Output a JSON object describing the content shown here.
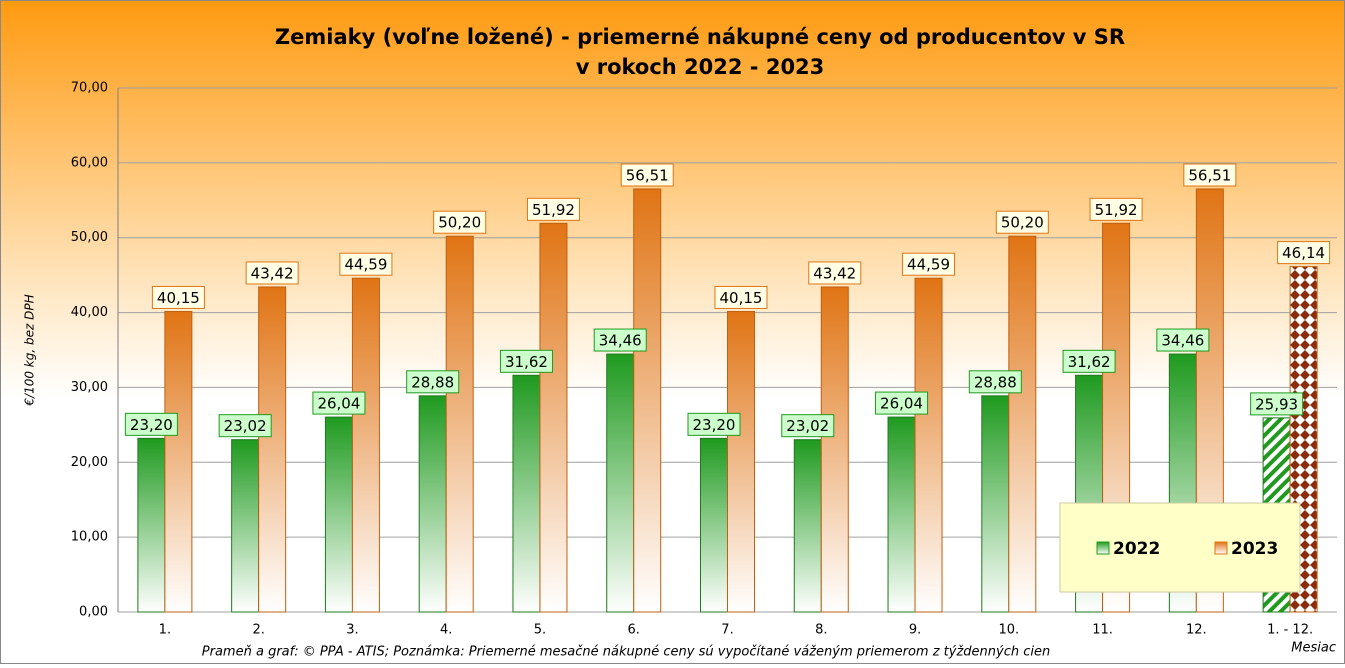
{
  "chart_data": {
    "type": "bar",
    "title": [
      "Zemiaky (voľne ložené) - priemerné nákupné ceny od producentov v SR",
      "v rokoch 2022 - 2023"
    ],
    "ylabel": "€/100 kg, bez DPH",
    "xlabel": "Mesiac",
    "footnote": "Prameň a graf: © PPA - ATIS; Poznámka: Priemerné mesačné nákupné ceny sú vypočítané váženým priemerom z týždenných cien",
    "categories": [
      "1.",
      "2.",
      "3.",
      "4.",
      "5.",
      "6.",
      "7.",
      "8.",
      "9.",
      "10.",
      "11.",
      "12.",
      "1. - 12."
    ],
    "series": [
      {
        "name": "2022",
        "color": "#1f9a1f",
        "label_fill": "#ccffcc",
        "values": [
          23.2,
          23.02,
          26.04,
          28.88,
          31.62,
          34.46,
          23.2,
          23.02,
          26.04,
          28.88,
          31.62,
          34.46,
          25.93
        ],
        "value_labels": [
          "23,20",
          "23,02",
          "26,04",
          "28,88",
          "31,62",
          "34,46",
          "23,20",
          "23,02",
          "26,04",
          "28,88",
          "31,62",
          "34,46",
          "25,93"
        ]
      },
      {
        "name": "2023",
        "color": "#e07414",
        "label_fill": "#ffffe6",
        "values": [
          40.15,
          43.42,
          44.59,
          50.2,
          51.92,
          56.51,
          40.15,
          43.42,
          44.59,
          50.2,
          51.92,
          56.51,
          46.14
        ],
        "value_labels": [
          "40,15",
          "43,42",
          "44,59",
          "50,20",
          "51,92",
          "56,51",
          "40,15",
          "43,42",
          "44,59",
          "50,20",
          "51,92",
          "56,51",
          "46,14"
        ]
      }
    ],
    "ylim": [
      0,
      70
    ],
    "yticks": [
      {
        "value": 0,
        "label": "0,00"
      },
      {
        "value": 10,
        "label": "10,00"
      },
      {
        "value": 20,
        "label": "20,00"
      },
      {
        "value": 30,
        "label": "30,00"
      },
      {
        "value": 40,
        "label": "40,00"
      },
      {
        "value": 50,
        "label": "50,00"
      },
      {
        "value": 60,
        "label": "60,00"
      },
      {
        "value": 70,
        "label": "70,00"
      }
    ],
    "grid": true,
    "legend": "lower right"
  }
}
